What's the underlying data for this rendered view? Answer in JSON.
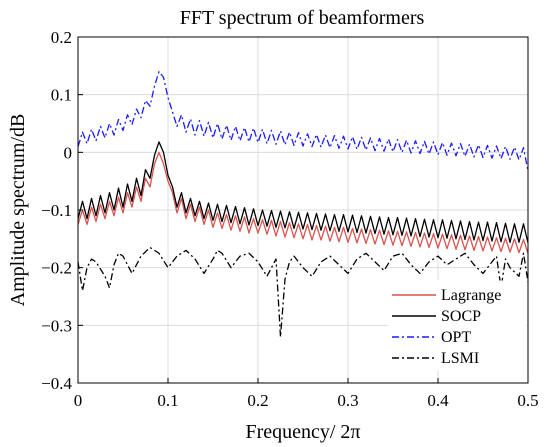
{
  "chart_data": {
    "type": "line",
    "title": "FFT spectrum of beamformers",
    "xlabel": "Frequency/ 2π",
    "ylabel": "Amplitude spectrum/dB",
    "xlim": [
      0,
      0.5
    ],
    "ylim": [
      -0.4,
      0.2
    ],
    "xticks": [
      0,
      0.1,
      0.2,
      0.3,
      0.4,
      0.5
    ],
    "xtick_labels": [
      "0",
      "0.1",
      "0.2",
      "0.3",
      "0.4",
      "0.5"
    ],
    "yticks": [
      -0.4,
      -0.3,
      -0.2,
      -0.1,
      0,
      0.1,
      0.2
    ],
    "ytick_labels": [
      "−0.4",
      "−0.3",
      "−0.2",
      "−0.1",
      "0",
      "0.1",
      "0.2"
    ],
    "grid": true,
    "legend_position": "bottom-right",
    "series": [
      {
        "name": "Lagrange",
        "color": "#d9534f",
        "dash": "solid",
        "x": [
          0,
          0.005,
          0.01,
          0.015,
          0.02,
          0.025,
          0.03,
          0.035,
          0.04,
          0.045,
          0.05,
          0.055,
          0.06,
          0.065,
          0.07,
          0.075,
          0.08,
          0.085,
          0.09,
          0.095,
          0.1,
          0.105,
          0.11,
          0.115,
          0.12,
          0.125,
          0.13,
          0.135,
          0.14,
          0.145,
          0.15,
          0.155,
          0.16,
          0.165,
          0.17,
          0.175,
          0.18,
          0.185,
          0.19,
          0.195,
          0.2,
          0.205,
          0.21,
          0.215,
          0.22,
          0.225,
          0.23,
          0.235,
          0.24,
          0.245,
          0.25,
          0.255,
          0.26,
          0.265,
          0.27,
          0.275,
          0.28,
          0.285,
          0.29,
          0.295,
          0.3,
          0.305,
          0.31,
          0.315,
          0.32,
          0.325,
          0.33,
          0.335,
          0.34,
          0.345,
          0.35,
          0.355,
          0.36,
          0.365,
          0.37,
          0.375,
          0.38,
          0.385,
          0.39,
          0.395,
          0.4,
          0.405,
          0.41,
          0.415,
          0.42,
          0.425,
          0.43,
          0.435,
          0.44,
          0.445,
          0.45,
          0.455,
          0.46,
          0.465,
          0.47,
          0.475,
          0.48,
          0.485,
          0.49,
          0.495,
          0.5
        ],
        "y": [
          -0.125,
          -0.1,
          -0.125,
          -0.095,
          -0.12,
          -0.09,
          -0.115,
          -0.085,
          -0.11,
          -0.078,
          -0.105,
          -0.07,
          -0.095,
          -0.06,
          -0.085,
          -0.045,
          -0.06,
          -0.02,
          0.0,
          -0.02,
          -0.05,
          -0.07,
          -0.105,
          -0.08,
          -0.115,
          -0.09,
          -0.12,
          -0.095,
          -0.125,
          -0.1,
          -0.13,
          -0.105,
          -0.132,
          -0.108,
          -0.135,
          -0.11,
          -0.137,
          -0.112,
          -0.14,
          -0.115,
          -0.14,
          -0.117,
          -0.142,
          -0.118,
          -0.145,
          -0.12,
          -0.147,
          -0.122,
          -0.148,
          -0.124,
          -0.15,
          -0.125,
          -0.152,
          -0.127,
          -0.152,
          -0.128,
          -0.154,
          -0.13,
          -0.155,
          -0.13,
          -0.156,
          -0.132,
          -0.157,
          -0.133,
          -0.158,
          -0.134,
          -0.159,
          -0.135,
          -0.16,
          -0.136,
          -0.161,
          -0.137,
          -0.162,
          -0.138,
          -0.163,
          -0.139,
          -0.164,
          -0.14,
          -0.165,
          -0.141,
          -0.166,
          -0.142,
          -0.167,
          -0.143,
          -0.168,
          -0.144,
          -0.169,
          -0.145,
          -0.17,
          -0.146,
          -0.171,
          -0.147,
          -0.171,
          -0.148,
          -0.172,
          -0.149,
          -0.173,
          -0.15,
          -0.174,
          -0.151,
          -0.175
        ]
      },
      {
        "name": "SOCP",
        "color": "#000000",
        "dash": "solid",
        "x": [
          0,
          0.005,
          0.01,
          0.015,
          0.02,
          0.025,
          0.03,
          0.035,
          0.04,
          0.045,
          0.05,
          0.055,
          0.06,
          0.065,
          0.07,
          0.075,
          0.08,
          0.085,
          0.09,
          0.095,
          0.1,
          0.105,
          0.11,
          0.115,
          0.12,
          0.125,
          0.13,
          0.135,
          0.14,
          0.145,
          0.15,
          0.155,
          0.16,
          0.165,
          0.17,
          0.175,
          0.18,
          0.185,
          0.19,
          0.195,
          0.2,
          0.205,
          0.21,
          0.215,
          0.22,
          0.225,
          0.23,
          0.235,
          0.24,
          0.245,
          0.25,
          0.255,
          0.26,
          0.265,
          0.27,
          0.275,
          0.28,
          0.285,
          0.29,
          0.295,
          0.3,
          0.305,
          0.31,
          0.315,
          0.32,
          0.325,
          0.33,
          0.335,
          0.34,
          0.345,
          0.35,
          0.355,
          0.36,
          0.365,
          0.37,
          0.375,
          0.38,
          0.385,
          0.39,
          0.395,
          0.4,
          0.405,
          0.41,
          0.415,
          0.42,
          0.425,
          0.43,
          0.435,
          0.44,
          0.445,
          0.45,
          0.455,
          0.46,
          0.465,
          0.47,
          0.475,
          0.48,
          0.485,
          0.49,
          0.495,
          0.5
        ],
        "y": [
          -0.115,
          -0.085,
          -0.115,
          -0.08,
          -0.11,
          -0.075,
          -0.105,
          -0.07,
          -0.1,
          -0.062,
          -0.095,
          -0.055,
          -0.085,
          -0.045,
          -0.075,
          -0.03,
          -0.045,
          -0.005,
          0.018,
          0.0,
          -0.04,
          -0.06,
          -0.095,
          -0.07,
          -0.105,
          -0.08,
          -0.11,
          -0.085,
          -0.115,
          -0.088,
          -0.118,
          -0.09,
          -0.12,
          -0.092,
          -0.122,
          -0.094,
          -0.124,
          -0.096,
          -0.126,
          -0.098,
          -0.127,
          -0.1,
          -0.128,
          -0.101,
          -0.13,
          -0.102,
          -0.131,
          -0.103,
          -0.132,
          -0.104,
          -0.133,
          -0.105,
          -0.134,
          -0.106,
          -0.135,
          -0.107,
          -0.136,
          -0.108,
          -0.137,
          -0.108,
          -0.138,
          -0.109,
          -0.139,
          -0.11,
          -0.14,
          -0.111,
          -0.141,
          -0.112,
          -0.142,
          -0.113,
          -0.143,
          -0.113,
          -0.144,
          -0.114,
          -0.145,
          -0.115,
          -0.146,
          -0.116,
          -0.147,
          -0.117,
          -0.148,
          -0.117,
          -0.149,
          -0.118,
          -0.15,
          -0.119,
          -0.151,
          -0.12,
          -0.152,
          -0.121,
          -0.153,
          -0.121,
          -0.154,
          -0.122,
          -0.155,
          -0.123,
          -0.156,
          -0.124,
          -0.156,
          -0.124,
          -0.157
        ]
      },
      {
        "name": "OPT",
        "color": "#1a1aff",
        "dash": "dashdot",
        "x": [
          0,
          0.005,
          0.01,
          0.015,
          0.02,
          0.025,
          0.03,
          0.035,
          0.04,
          0.045,
          0.05,
          0.055,
          0.06,
          0.065,
          0.07,
          0.075,
          0.08,
          0.085,
          0.09,
          0.095,
          0.1,
          0.105,
          0.11,
          0.115,
          0.12,
          0.125,
          0.13,
          0.135,
          0.14,
          0.145,
          0.15,
          0.155,
          0.16,
          0.165,
          0.17,
          0.175,
          0.18,
          0.185,
          0.19,
          0.195,
          0.2,
          0.205,
          0.21,
          0.215,
          0.22,
          0.225,
          0.23,
          0.235,
          0.24,
          0.245,
          0.25,
          0.255,
          0.26,
          0.265,
          0.27,
          0.275,
          0.28,
          0.285,
          0.29,
          0.295,
          0.3,
          0.305,
          0.31,
          0.315,
          0.32,
          0.325,
          0.33,
          0.335,
          0.34,
          0.345,
          0.35,
          0.355,
          0.36,
          0.365,
          0.37,
          0.375,
          0.38,
          0.385,
          0.39,
          0.395,
          0.4,
          0.405,
          0.41,
          0.415,
          0.42,
          0.425,
          0.43,
          0.435,
          0.44,
          0.445,
          0.45,
          0.455,
          0.46,
          0.465,
          0.47,
          0.475,
          0.48,
          0.485,
          0.49,
          0.495,
          0.5
        ],
        "y": [
          0.01,
          0.035,
          0.015,
          0.04,
          0.02,
          0.045,
          0.025,
          0.05,
          0.03,
          0.057,
          0.038,
          0.065,
          0.048,
          0.075,
          0.06,
          0.09,
          0.08,
          0.115,
          0.14,
          0.13,
          0.095,
          0.07,
          0.045,
          0.065,
          0.035,
          0.058,
          0.03,
          0.055,
          0.028,
          0.052,
          0.025,
          0.05,
          0.023,
          0.047,
          0.021,
          0.045,
          0.02,
          0.043,
          0.018,
          0.042,
          0.017,
          0.04,
          0.015,
          0.038,
          0.014,
          0.037,
          0.013,
          0.035,
          0.012,
          0.034,
          0.011,
          0.032,
          0.01,
          0.031,
          0.009,
          0.03,
          0.008,
          0.029,
          0.007,
          0.028,
          0.006,
          0.027,
          0.005,
          0.026,
          0.004,
          0.025,
          0.003,
          0.024,
          0.002,
          0.023,
          0.001,
          0.022,
          0.0,
          0.021,
          -0.001,
          0.02,
          -0.002,
          0.019,
          -0.003,
          0.018,
          -0.004,
          0.017,
          -0.005,
          0.016,
          -0.006,
          0.015,
          -0.007,
          0.014,
          -0.008,
          0.013,
          -0.009,
          0.012,
          -0.01,
          0.011,
          -0.011,
          0.01,
          -0.012,
          0.009,
          -0.013,
          0.008,
          -0.032
        ]
      },
      {
        "name": "LSMI",
        "color": "#000000",
        "dash": "dashdot",
        "x": [
          0,
          0.005,
          0.01,
          0.015,
          0.02,
          0.03,
          0.035,
          0.04,
          0.045,
          0.05,
          0.06,
          0.07,
          0.08,
          0.09,
          0.1,
          0.11,
          0.12,
          0.13,
          0.14,
          0.15,
          0.155,
          0.16,
          0.17,
          0.18,
          0.19,
          0.2,
          0.21,
          0.215,
          0.22,
          0.225,
          0.23,
          0.235,
          0.24,
          0.25,
          0.26,
          0.27,
          0.28,
          0.29,
          0.3,
          0.31,
          0.32,
          0.33,
          0.34,
          0.35,
          0.36,
          0.37,
          0.38,
          0.39,
          0.4,
          0.41,
          0.42,
          0.43,
          0.44,
          0.45,
          0.46,
          0.465,
          0.47,
          0.475,
          0.48,
          0.49,
          0.495,
          0.5
        ],
        "y": [
          -0.19,
          -0.24,
          -0.2,
          -0.185,
          -0.19,
          -0.215,
          -0.235,
          -0.195,
          -0.175,
          -0.18,
          -0.21,
          -0.18,
          -0.165,
          -0.175,
          -0.2,
          -0.18,
          -0.17,
          -0.185,
          -0.21,
          -0.185,
          -0.17,
          -0.175,
          -0.2,
          -0.18,
          -0.175,
          -0.19,
          -0.215,
          -0.2,
          -0.185,
          -0.32,
          -0.22,
          -0.19,
          -0.18,
          -0.2,
          -0.215,
          -0.19,
          -0.18,
          -0.195,
          -0.21,
          -0.185,
          -0.175,
          -0.19,
          -0.205,
          -0.18,
          -0.175,
          -0.195,
          -0.21,
          -0.19,
          -0.18,
          -0.195,
          -0.185,
          -0.175,
          -0.195,
          -0.21,
          -0.19,
          -0.18,
          -0.235,
          -0.185,
          -0.2,
          -0.215,
          -0.175,
          -0.225
        ]
      }
    ]
  }
}
